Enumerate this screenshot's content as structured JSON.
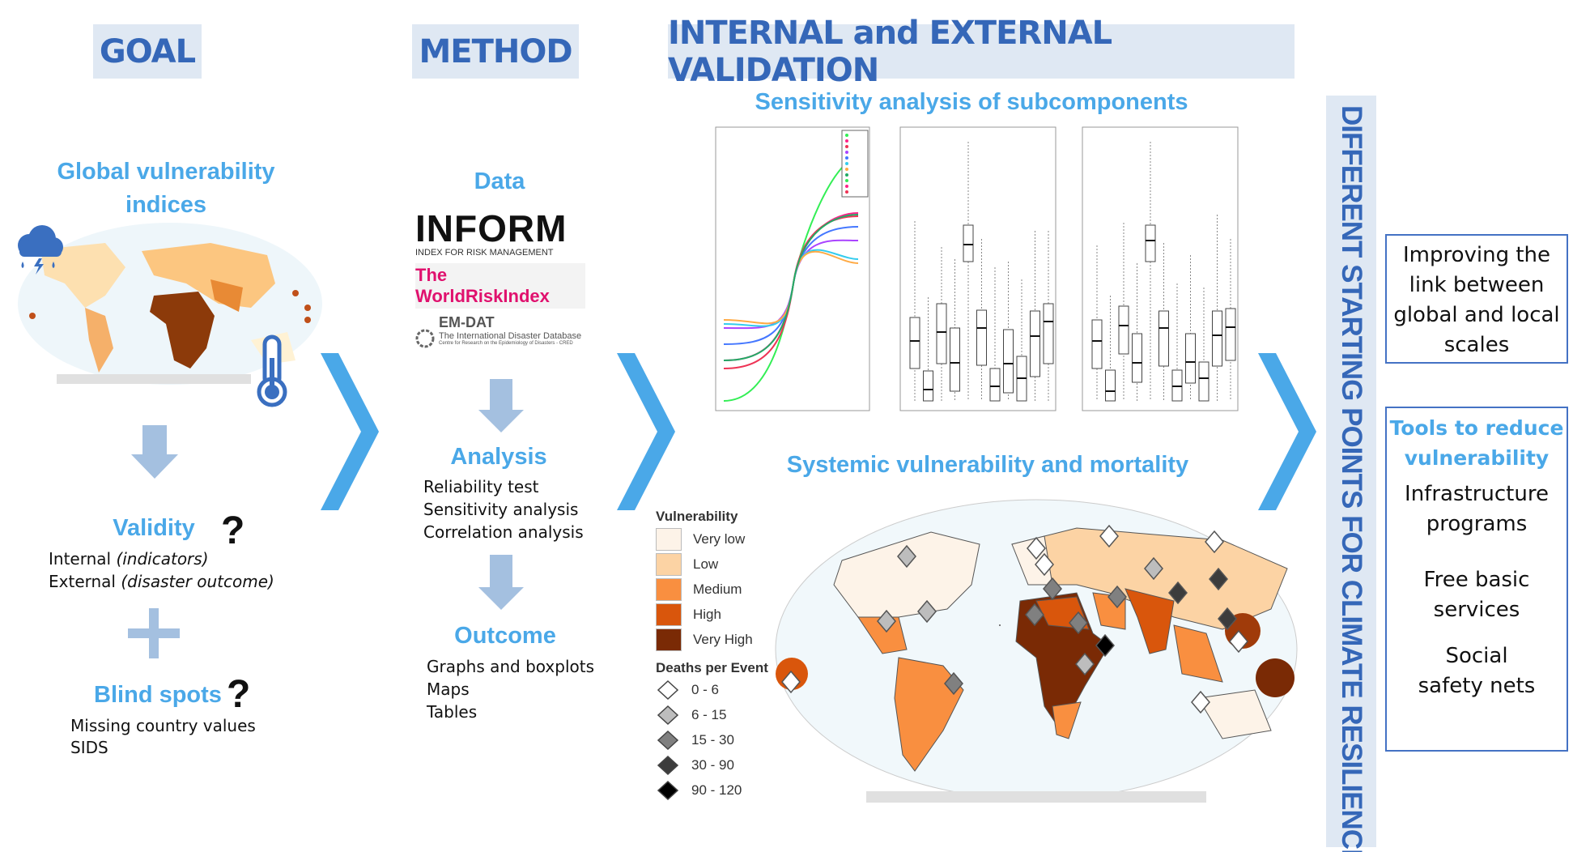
{
  "headers": {
    "goal": "GOAL",
    "method": "METHOD",
    "validation": "INTERNAL and EXTERNAL VALIDATION"
  },
  "goal": {
    "title_line1": "Global vulnerability",
    "title_line2": "indices",
    "validity": {
      "title": "Validity",
      "mark": "?",
      "line1": "Internal ",
      "line1_em": "(indicators)",
      "line2": "External ",
      "line2_em": "(disaster outcome)"
    },
    "blind_spots": {
      "title": "Blind spots",
      "mark": "?",
      "line1": "Missing country values",
      "line2": "SIDS"
    }
  },
  "method": {
    "data_title": "Data",
    "logos": {
      "inform": "INFORM",
      "inform_sub": "INDEX FOR RISK MANAGEMENT",
      "worldrisk": "The WorldRiskIndex",
      "emdat": "EM-DAT",
      "emdat_sub": "The International Disaster Database",
      "emdat_sub2": "Centre for Research on the Epidemiology of Disasters - CRED"
    },
    "analysis": {
      "title": "Analysis",
      "items": [
        "Reliability test",
        "Sensitivity analysis",
        "Correlation analysis"
      ]
    },
    "outcome": {
      "title": "Outcome",
      "items": [
        "Graphs and boxplots",
        "Maps",
        "Tables"
      ]
    }
  },
  "validation": {
    "sensitivity_title": "Sensitivity analysis of subcomponents",
    "systemic_title": "Systemic vulnerability and mortality",
    "legend": {
      "vulnerability_title": "Vulnerability",
      "vulnerability": [
        {
          "label": "Very low",
          "color": "#fdf3e8"
        },
        {
          "label": "Low",
          "color": "#fcd3a4"
        },
        {
          "label": "Medium",
          "color": "#f98f40"
        },
        {
          "label": "High",
          "color": "#d9560c"
        },
        {
          "label": "Very High",
          "color": "#7a2a05"
        }
      ],
      "deaths_title": "Deaths per Event",
      "deaths": [
        {
          "label": "0 - 6",
          "color": "#ffffff"
        },
        {
          "label": "6 - 15",
          "color": "#bdbdbd"
        },
        {
          "label": "15 - 30",
          "color": "#808080"
        },
        {
          "label": "30 - 90",
          "color": "#3c3c3c"
        },
        {
          "label": "90 - 120",
          "color": "#000000"
        }
      ]
    }
  },
  "banner": "DIFFERENT STARTING POINTS FOR CLIMATE RESILIENCE",
  "outcomes": {
    "box1": [
      "Improving the",
      "link between",
      "global and local",
      "scales"
    ],
    "box2_title": [
      "Tools to reduce",
      "vulnerability"
    ],
    "box2_items": [
      [
        "Infrastructure",
        "programs"
      ],
      [
        "Free basic",
        "services"
      ],
      [
        "Social",
        "safety nets"
      ]
    ]
  },
  "colors": {
    "header_text": "#3567b8",
    "header_bg": "#dfe8f3",
    "accent": "#4aa8e8",
    "arrow": "#a4c0e0",
    "box_border": "#4472c4"
  }
}
